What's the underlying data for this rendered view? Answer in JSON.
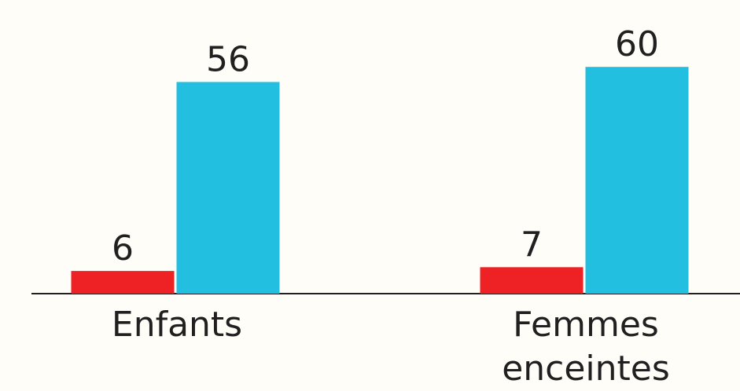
{
  "chart_data": {
    "type": "bar",
    "categories": [
      "Enfants",
      "Femmes enceintes"
    ],
    "series": [
      {
        "color": "#ee2225",
        "values": [
          6,
          7
        ]
      },
      {
        "color": "#22bfe0",
        "values": [
          56,
          60
        ]
      }
    ],
    "ylim": [
      0,
      75
    ]
  }
}
